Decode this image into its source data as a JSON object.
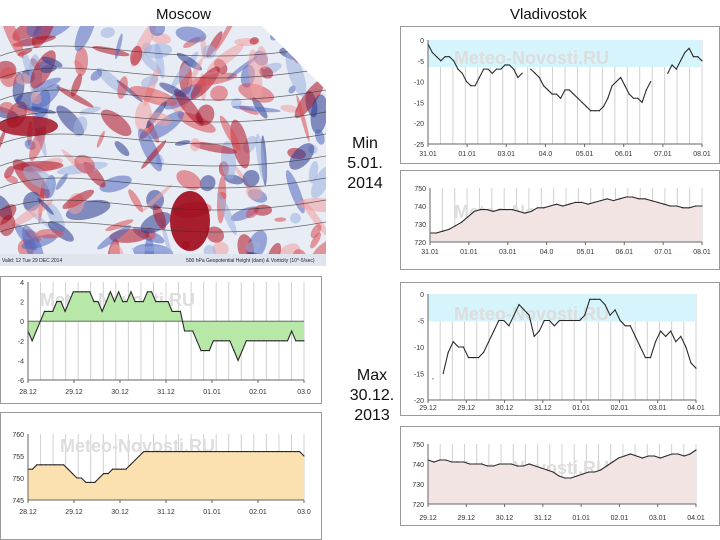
{
  "titles": {
    "left": "Moscow",
    "right": "Vladivostok"
  },
  "annotations": {
    "min": [
      "Min",
      "5.01.",
      "2014"
    ],
    "max": [
      "Max",
      "30.12.",
      "2013"
    ]
  },
  "map": {
    "footer_left": "Valid: 12 Tue 29 DEC 2014",
    "footer_right": "500 hPa Geopotential Height (dam) & Vorticity (10^-5/sec)"
  },
  "watermark": "Meteo-Novosti.RU",
  "chart_data": [
    {
      "id": "moscow-temp",
      "type": "area",
      "baseline": 0,
      "x_labels": [
        "28.12",
        "29.12",
        "30.12",
        "31.12",
        "01.01",
        "02.01",
        "03.0"
      ],
      "ylim": [
        -6,
        4
      ],
      "yticks": [
        4,
        2,
        0,
        -2,
        -4,
        -6
      ],
      "values": [
        -1,
        -2,
        -1,
        0,
        1,
        1,
        1,
        2,
        2,
        1,
        2,
        3,
        3,
        3,
        3,
        3,
        2,
        2,
        1,
        2,
        3,
        2,
        3,
        2,
        2,
        3,
        2,
        2,
        2,
        3,
        3,
        2,
        2,
        2,
        2,
        1,
        1,
        1,
        -1,
        -1,
        -1,
        -2,
        -3,
        -3,
        -3,
        -2,
        -2,
        -2,
        -2,
        -2,
        -3,
        -4,
        -3,
        -2,
        -2,
        -2,
        -2,
        -2,
        -2,
        -2,
        -2,
        -2,
        -2,
        -2,
        -1,
        -2,
        -2,
        -2
      ],
      "fill": "#b7e8a8",
      "stroke": "#2a2a2a"
    },
    {
      "id": "moscow-pressure",
      "type": "area",
      "x_labels": [
        "28.12",
        "29.12",
        "30.12",
        "31.12",
        "01.01",
        "02.01",
        "03.0"
      ],
      "ylim": [
        745,
        760
      ],
      "yticks": [
        760,
        755,
        750,
        745
      ],
      "values": [
        752,
        752,
        753,
        753,
        753,
        753,
        753,
        753,
        753,
        752,
        751,
        750,
        750,
        749,
        749,
        749,
        750,
        751,
        751,
        752,
        752,
        752,
        752,
        753,
        754,
        755,
        756,
        756,
        756,
        756,
        756,
        756,
        756,
        756,
        756,
        756,
        756,
        756,
        756,
        756,
        756,
        756,
        756,
        756,
        756,
        756,
        756,
        756,
        756,
        756,
        756,
        756,
        756,
        756,
        756,
        756,
        756,
        756,
        756,
        756,
        756,
        756,
        755
      ],
      "fill": "#fbe0b0",
      "stroke": "#2a2a2a"
    },
    {
      "id": "vladivostok-min-temp",
      "type": "line",
      "panel": "Min 5.01.2014",
      "x_labels": [
        "31.01",
        "01.01",
        "03.01",
        "04.0",
        "05.01",
        "06.01",
        "07.01",
        "08.01"
      ],
      "ylim": [
        -25,
        0
      ],
      "yticks": [
        0,
        -5,
        -10,
        -15,
        -20,
        -25
      ],
      "values": [
        -1,
        -3,
        -4,
        -5,
        -4,
        -4,
        -5,
        -7,
        -8,
        -10,
        -11,
        -11,
        -9,
        -7,
        -7,
        -8,
        -7,
        -7,
        -6,
        -6,
        -7,
        -9,
        -8,
        null,
        -7,
        -8,
        -9,
        -11,
        -12,
        -13,
        -13,
        -14,
        -12,
        -12,
        -13,
        -14,
        -15,
        -16,
        -17,
        -17,
        -17,
        -16,
        -14,
        -11,
        -10,
        -9,
        -11,
        -13,
        -14,
        -14,
        -15,
        -12,
        -10,
        null,
        null,
        null,
        -8,
        -6,
        -7,
        -5,
        -3,
        -2,
        -4,
        -4,
        -5
      ],
      "fill": "#d6f4fb",
      "stroke": "#2a2a2a"
    },
    {
      "id": "vladivostok-min-pressure",
      "type": "line",
      "panel": "Min 5.01.2014",
      "x_labels": [
        "31.01",
        "01.01",
        "03.01",
        "04.0",
        "05.01",
        "06.01",
        "07.01",
        "08.01"
      ],
      "ylim": [
        720,
        750
      ],
      "yticks": [
        750,
        740,
        730,
        720
      ],
      "values": [
        725,
        725,
        726,
        727,
        729,
        731,
        734,
        737,
        738,
        738,
        737,
        738,
        738,
        738,
        737,
        736,
        737,
        739,
        739,
        740,
        741,
        740,
        741,
        742,
        742,
        741,
        742,
        743,
        744,
        743,
        744,
        745,
        745,
        744,
        744,
        743,
        742,
        741,
        740,
        740,
        739,
        739,
        740,
        740
      ],
      "fill": "#f3e4e4",
      "stroke": "#2a2a2a"
    },
    {
      "id": "vladivostok-max-temp",
      "type": "line",
      "panel": "Max 30.12.2013",
      "x_labels": [
        "29.12",
        "29.12",
        "30.12",
        "31.12",
        "01.01",
        "02.01",
        "03.01",
        "04.01"
      ],
      "ylim": [
        -20,
        0
      ],
      "yticks": [
        0,
        -5,
        -10,
        -15,
        -20
      ],
      "values": [
        null,
        -16,
        null,
        -15,
        -11,
        -9,
        -10,
        -10,
        -12,
        -12,
        -12,
        -11,
        -9,
        -7,
        -5,
        -5,
        -6,
        -4,
        -2,
        -3,
        -4,
        -8,
        -7,
        -5,
        -5,
        -6,
        -5,
        -5,
        -5,
        -5,
        -5,
        -4,
        -1,
        -1,
        -1,
        -2,
        -4,
        -3,
        -5,
        -6,
        -6,
        -8,
        -10,
        -12,
        -12,
        -9,
        -7,
        -8,
        -7,
        -9,
        -8,
        -10,
        -13,
        -14
      ],
      "fill": "#d6f4fb",
      "stroke": "#2a2a2a"
    },
    {
      "id": "vladivostok-max-pressure",
      "type": "line",
      "panel": "Max 30.12.2013",
      "x_labels": [
        "29.12",
        "29.12",
        "30.12",
        "31.12",
        "01.01",
        "02.01",
        "03.01",
        "04.01"
      ],
      "ylim": [
        720,
        750
      ],
      "yticks": [
        750,
        740,
        730,
        720
      ],
      "values": [
        742,
        741,
        742,
        742,
        741,
        741,
        741,
        740,
        740,
        740,
        739,
        739,
        740,
        740,
        740,
        739,
        739,
        740,
        739,
        738,
        737,
        736,
        734,
        733,
        733,
        734,
        735,
        736,
        736,
        737,
        739,
        741,
        743,
        744,
        745,
        744,
        743,
        744,
        744,
        743,
        744,
        745,
        745,
        744,
        745,
        747
      ],
      "fill": "#f3e4e4",
      "stroke": "#2a2a2a"
    }
  ]
}
